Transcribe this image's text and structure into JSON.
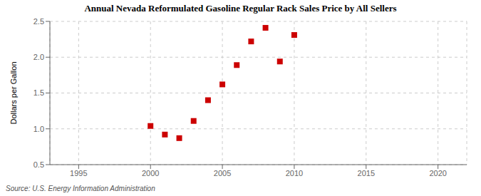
{
  "chart_data": {
    "type": "scatter",
    "title": "Annual Nevada Reformulated Gasoline Regular Rack Sales Price by All Sellers",
    "y_label": "Dollars per Gallon",
    "annotations": [
      "Source: U.S. Energy Information Administration"
    ],
    "x": [
      2000,
      2001,
      2002,
      2003,
      2004,
      2005,
      2006,
      2007,
      2008,
      2009,
      2010
    ],
    "values": [
      1.04,
      0.92,
      0.87,
      1.11,
      1.4,
      1.62,
      1.89,
      2.22,
      2.41,
      1.94,
      2.31
    ],
    "color": "#cc0000",
    "marker": "square",
    "xlim": [
      1993,
      2022
    ],
    "ylim": [
      0.5,
      2.5
    ],
    "xticks": [
      1995,
      2000,
      2005,
      2010,
      2015,
      2020
    ],
    "yticks": [
      0.5,
      {
        "value": 1.0,
        "label": "1.0"
      },
      1.5,
      {
        "value": 2.0,
        "label": "2.0"
      },
      2.5
    ],
    "grid": true
  }
}
